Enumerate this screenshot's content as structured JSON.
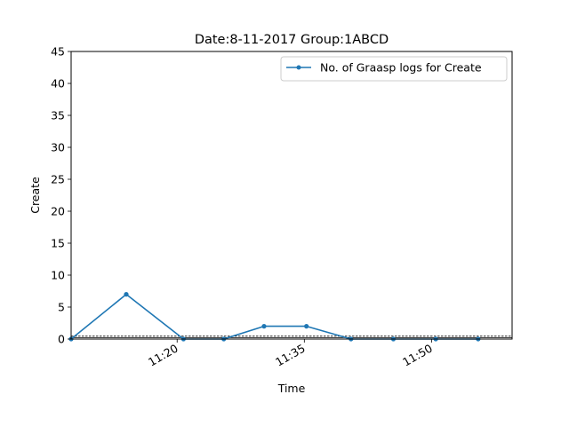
{
  "chart_data": {
    "type": "line",
    "title": "Date:8-11-2017  Group:1ABCD",
    "xlabel": "Time",
    "ylabel": "Create",
    "ylim": [
      0,
      45
    ],
    "xlim": [
      "11:07:30",
      "11:59:30"
    ],
    "yticks": [
      0,
      5,
      10,
      15,
      20,
      25,
      30,
      35,
      40,
      45
    ],
    "xticks": [
      {
        "time": "11:20",
        "label": "11:20"
      },
      {
        "time": "11:35",
        "label": "11:35"
      },
      {
        "time": "11:50",
        "label": "11:50"
      }
    ],
    "legend_position": "top-right",
    "grid": false,
    "series": [
      {
        "name": "No. of Graasp logs for Create",
        "color": "#1f77b4",
        "marker": "point",
        "points": [
          {
            "x": "11:07:30",
            "y": 0
          },
          {
            "x": "11:14:00",
            "y": 7
          },
          {
            "x": "11:20:45",
            "y": 0
          },
          {
            "x": "11:25:30",
            "y": 0
          },
          {
            "x": "11:30:15",
            "y": 2
          },
          {
            "x": "11:35:15",
            "y": 2
          },
          {
            "x": "11:40:30",
            "y": 0
          },
          {
            "x": "11:45:30",
            "y": 0
          },
          {
            "x": "11:50:30",
            "y": 0
          },
          {
            "x": "11:55:30",
            "y": 0
          }
        ]
      }
    ]
  }
}
